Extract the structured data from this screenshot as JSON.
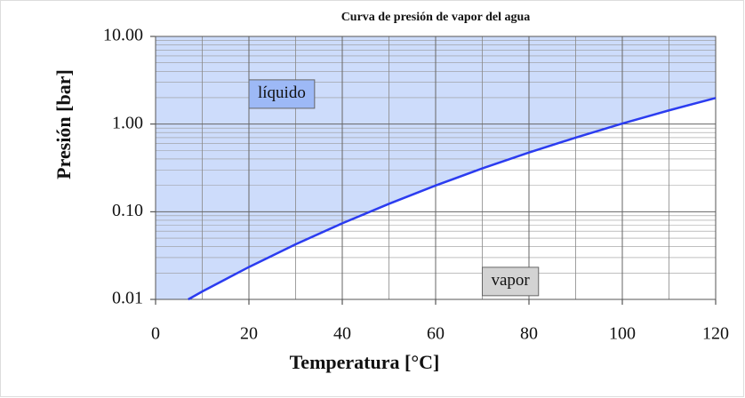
{
  "chart_data": {
    "type": "line",
    "title": "Curva de presión de vapor del agua",
    "xlabel": "Temperatura  [°C]",
    "ylabel": "Presión [bar]",
    "x": [
      7,
      10,
      20,
      30,
      40,
      50,
      60,
      70,
      80,
      90,
      100,
      110,
      120
    ],
    "series": [
      {
        "name": null,
        "color": "#2b3cf0",
        "values": [
          0.01,
          0.0123,
          0.0234,
          0.0425,
          0.0738,
          0.123,
          0.199,
          0.312,
          0.474,
          0.701,
          1.013,
          1.433,
          1.985
        ]
      }
    ],
    "xlim": [
      0,
      120
    ],
    "xticks": [
      0,
      20,
      40,
      60,
      80,
      100,
      120
    ],
    "ylim": [
      0.01,
      10
    ],
    "yscale": "log",
    "yticks": [
      {
        "value": 0.01,
        "label": "0.01"
      },
      {
        "value": 0.1,
        "label": "0.10"
      },
      {
        "value": 1,
        "label": "1.00"
      },
      {
        "value": 10,
        "label": "10.00"
      }
    ],
    "grid": true,
    "fill_above": "#cddcfb",
    "annotations": [
      {
        "text": "líquido",
        "x": 20,
        "y": 2.2
      },
      {
        "text": "vapor",
        "x": 70,
        "y": 0.016
      }
    ]
  }
}
